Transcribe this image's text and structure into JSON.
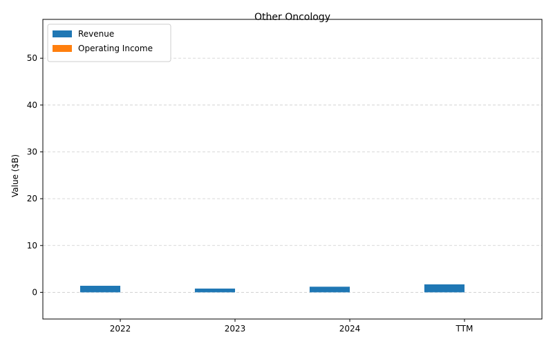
{
  "chart_data": {
    "type": "bar",
    "title": "Other Oncology",
    "xlabel": "",
    "ylabel": "Value ($B)",
    "categories": [
      "2022",
      "2023",
      "2024",
      "TTM"
    ],
    "series": [
      {
        "name": "Revenue",
        "color": "#1f77b4",
        "values": [
          1.4,
          0.8,
          1.2,
          1.7
        ]
      },
      {
        "name": "Operating Income",
        "color": "#ff7f0e",
        "values": [
          0,
          0,
          0,
          0
        ]
      }
    ],
    "ylim": [
      -5.7,
      58.3
    ],
    "yticks": [
      0,
      10,
      20,
      30,
      40,
      50
    ],
    "grid": "y-dashed",
    "legend": "top-left"
  }
}
